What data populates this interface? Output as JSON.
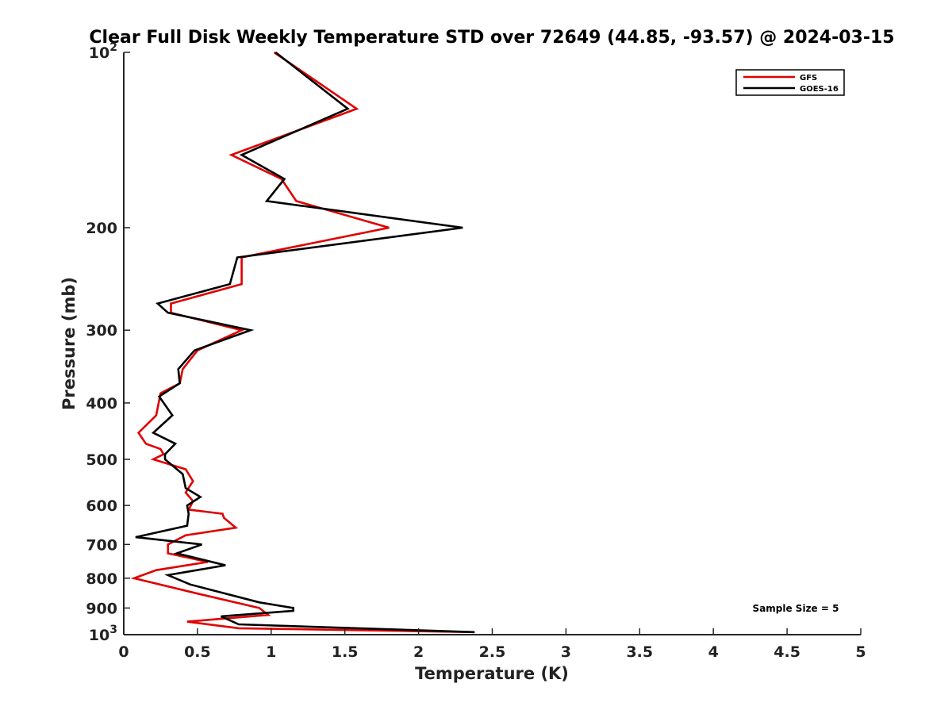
{
  "chart_data": {
    "type": "line",
    "title": "Clear Full Disk Weekly Temperature STD over 72649 (44.85, -93.57) @ 2024-03-15",
    "xlabel": "Temperature (K)",
    "ylabel": "Pressure (mb)",
    "xlim": [
      0,
      5
    ],
    "ylim": [
      100,
      1000
    ],
    "yscale": "log",
    "y_reversed": true,
    "grid": false,
    "legend_position": "top-right",
    "x_ticks": [
      {
        "value": 0,
        "label": "0"
      },
      {
        "value": 0.5,
        "label": "0.5"
      },
      {
        "value": 1,
        "label": "1"
      },
      {
        "value": 1.5,
        "label": "1.5"
      },
      {
        "value": 2,
        "label": "2"
      },
      {
        "value": 2.5,
        "label": "2.5"
      },
      {
        "value": 3,
        "label": "3"
      },
      {
        "value": 3.5,
        "label": "3.5"
      },
      {
        "value": 4,
        "label": "4"
      },
      {
        "value": 4.5,
        "label": "4.5"
      },
      {
        "value": 5,
        "label": "5"
      }
    ],
    "y_ticks": [
      {
        "value": 100,
        "base": "10",
        "exp": "2"
      },
      {
        "value": 200,
        "label": "200"
      },
      {
        "value": 300,
        "label": "300"
      },
      {
        "value": 400,
        "label": "400"
      },
      {
        "value": 500,
        "label": "500"
      },
      {
        "value": 600,
        "label": "600"
      },
      {
        "value": 700,
        "label": "700"
      },
      {
        "value": 800,
        "label": "800"
      },
      {
        "value": 900,
        "label": "900"
      },
      {
        "value": 1000,
        "base": "10",
        "exp": "3"
      }
    ],
    "annotation": "Sample Size = 5",
    "series": [
      {
        "name": "GFS",
        "color": "#e00000",
        "points": [
          [
            1.02,
            100
          ],
          [
            1.58,
            125
          ],
          [
            0.73,
            150
          ],
          [
            1.07,
            165
          ],
          [
            1.17,
            180
          ],
          [
            1.8,
            200
          ],
          [
            0.8,
            225
          ],
          [
            0.8,
            250
          ],
          [
            0.32,
            270
          ],
          [
            0.32,
            280
          ],
          [
            0.8,
            300
          ],
          [
            0.5,
            325
          ],
          [
            0.4,
            350
          ],
          [
            0.38,
            370
          ],
          [
            0.25,
            385
          ],
          [
            0.22,
            420
          ],
          [
            0.1,
            450
          ],
          [
            0.15,
            470
          ],
          [
            0.25,
            480
          ],
          [
            0.27,
            490
          ],
          [
            0.2,
            500
          ],
          [
            0.42,
            520
          ],
          [
            0.47,
            545
          ],
          [
            0.42,
            570
          ],
          [
            0.47,
            590
          ],
          [
            0.44,
            610
          ],
          [
            0.67,
            620
          ],
          [
            0.68,
            630
          ],
          [
            0.76,
            655
          ],
          [
            0.42,
            675
          ],
          [
            0.3,
            700
          ],
          [
            0.3,
            725
          ],
          [
            0.57,
            750
          ],
          [
            0.22,
            775
          ],
          [
            0.07,
            800
          ],
          [
            0.5,
            850
          ],
          [
            0.92,
            900
          ],
          [
            0.98,
            925
          ],
          [
            0.43,
            950
          ],
          [
            0.78,
            975
          ],
          [
            2.38,
            990
          ]
        ]
      },
      {
        "name": "GOES-16",
        "color": "#000000",
        "points": [
          [
            1.03,
            100
          ],
          [
            1.52,
            125
          ],
          [
            0.8,
            150
          ],
          [
            1.09,
            165
          ],
          [
            0.97,
            180
          ],
          [
            2.3,
            200
          ],
          [
            0.77,
            225
          ],
          [
            0.72,
            250
          ],
          [
            0.23,
            270
          ],
          [
            0.3,
            280
          ],
          [
            0.86,
            300
          ],
          [
            0.48,
            325
          ],
          [
            0.37,
            350
          ],
          [
            0.38,
            370
          ],
          [
            0.24,
            390
          ],
          [
            0.33,
            420
          ],
          [
            0.2,
            450
          ],
          [
            0.35,
            470
          ],
          [
            0.28,
            490
          ],
          [
            0.28,
            500
          ],
          [
            0.4,
            530
          ],
          [
            0.42,
            560
          ],
          [
            0.52,
            580
          ],
          [
            0.43,
            600
          ],
          [
            0.44,
            620
          ],
          [
            0.43,
            650
          ],
          [
            0.08,
            680
          ],
          [
            0.53,
            700
          ],
          [
            0.36,
            725
          ],
          [
            0.69,
            760
          ],
          [
            0.3,
            790
          ],
          [
            0.45,
            820
          ],
          [
            0.92,
            880
          ],
          [
            1.15,
            900
          ],
          [
            1.15,
            910
          ],
          [
            0.66,
            930
          ],
          [
            0.78,
            960
          ],
          [
            2.38,
            990
          ]
        ]
      }
    ]
  }
}
